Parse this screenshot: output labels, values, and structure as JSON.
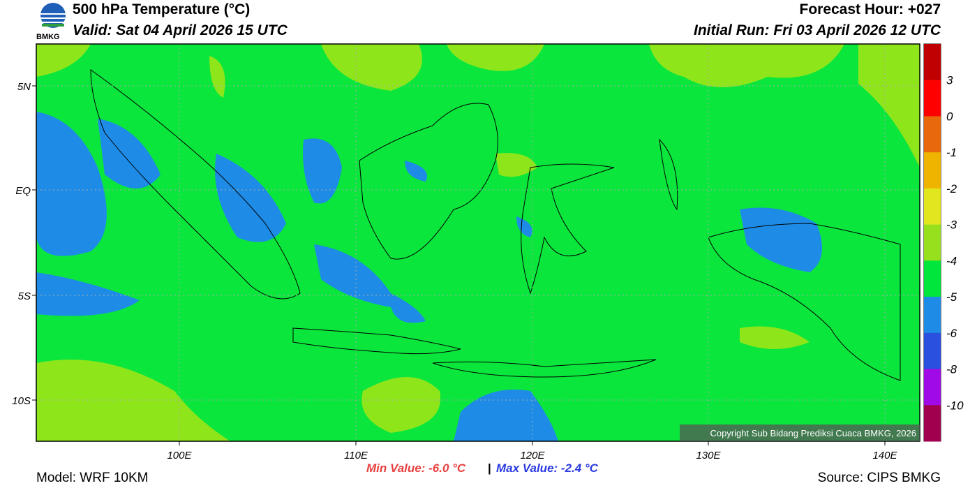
{
  "header": {
    "logo": "BMKG",
    "title": "500 hPa Temperature (°C)",
    "valid": "Valid: Sat 04 April 2026 15 UTC",
    "forecast": "Forecast Hour: +027",
    "initial": "Initial Run: Fri 03 April 2026 12 UTC"
  },
  "map": {
    "lat_labels": [
      "5N",
      "EQ",
      "5S",
      "10S"
    ],
    "lon_labels": [
      "100E",
      "110E",
      "120E",
      "130E",
      "140E"
    ],
    "copyright": "Copyright Sub Bidang Prediksi Cuaca BMKG, 2026"
  },
  "colorbar": {
    "colors": [
      "#c00000",
      "#ff0000",
      "#e8680c",
      "#eeb400",
      "#e2e61e",
      "#96e01e",
      "#00e63c",
      "#1e8ce6",
      "#2a50e0",
      "#a00ae6",
      "#a0004e"
    ],
    "labels": [
      "3",
      "0",
      "-1",
      "-2",
      "-3",
      "-4",
      "-5",
      "-6",
      "-8",
      "-10"
    ]
  },
  "stats": {
    "min": "Min Value: -6.0 °C",
    "separator": "|",
    "max": "Max Value: -2.4 °C"
  },
  "footer": {
    "model": "Model: WRF 10KM",
    "source": "Source: CIPS BMKG"
  }
}
